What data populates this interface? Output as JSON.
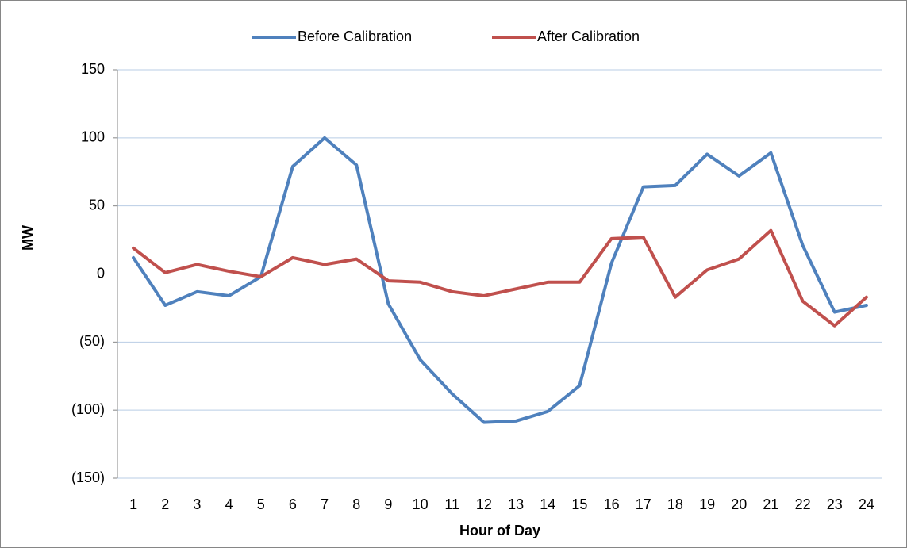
{
  "chart_data": {
    "type": "line",
    "x_label": "Hour of Day",
    "y_label": "MW",
    "categories": [
      "1",
      "2",
      "3",
      "4",
      "5",
      "6",
      "7",
      "8",
      "9",
      "10",
      "11",
      "12",
      "13",
      "14",
      "15",
      "16",
      "17",
      "18",
      "19",
      "20",
      "21",
      "22",
      "23",
      "24"
    ],
    "series": [
      {
        "name": "Before Calibration",
        "color": "#4f81bd",
        "values": [
          12,
          -23,
          -13,
          -16,
          -2,
          79,
          100,
          80,
          -22,
          -63,
          -88,
          -109,
          -108,
          -101,
          -82,
          8,
          64,
          65,
          88,
          72,
          89,
          21,
          -28,
          -23
        ]
      },
      {
        "name": "After Calibration",
        "color": "#c0504d",
        "values": [
          19,
          1,
          7,
          2,
          -2,
          12,
          7,
          11,
          -5,
          -6,
          -13,
          -16,
          -11,
          -6,
          -6,
          26,
          27,
          -17,
          3,
          11,
          32,
          -20,
          -38,
          -17
        ]
      }
    ],
    "ylim": [
      -150,
      150
    ],
    "yticks": [
      150,
      100,
      50,
      0,
      {
        "value": -50,
        "label": "(50)"
      },
      {
        "value": -100,
        "label": "(100)"
      },
      {
        "value": -150,
        "label": "(150)"
      }
    ],
    "negative_tick_color": "#ff0000",
    "grid": true,
    "grid_color": "#b9cde5",
    "legend": "top"
  }
}
